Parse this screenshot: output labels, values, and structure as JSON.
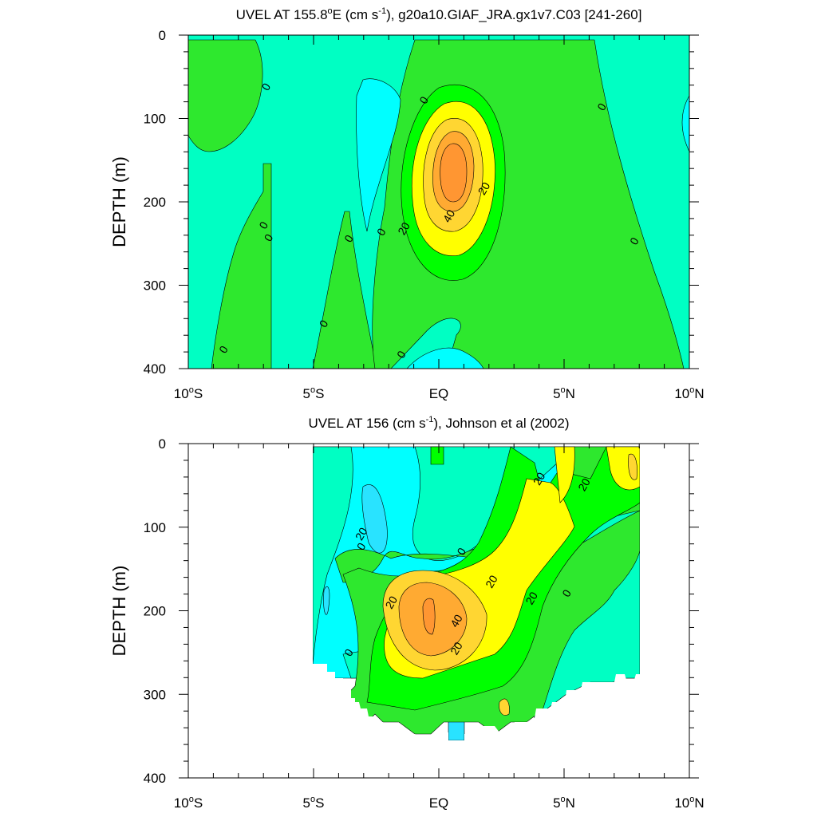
{
  "colors": {
    "background": "#ffffff",
    "contour_line": "#000000",
    "fill_levels": [
      {
        "level": "-40",
        "color": "#29E3FF"
      },
      {
        "level": "-20",
        "color": "#00FFFF"
      },
      {
        "level": "0",
        "color": "#00FFC3"
      },
      {
        "level": "20",
        "color": "#2EE82E"
      },
      {
        "level": "40",
        "color": "#00FF00"
      },
      {
        "level": "60",
        "color": "#FFFF00"
      },
      {
        "level": "80",
        "color": "#FFD632"
      },
      {
        "level": "100",
        "color": "#FFAA32"
      },
      {
        "level": "120",
        "color": "#FF9632"
      }
    ]
  },
  "chart_data": [
    {
      "type": "contour",
      "title": "UVEL AT 155.8°E (cm s-1), g20a10.GIAF_JRA.gx1v7.C03 [241-260]",
      "title_parts": {
        "pre": "UVEL AT 155.8",
        "deg": "o",
        "mid": "E (cm s",
        "sup": "-1",
        "post": "), g20a10.GIAF_JRA.gx1v7.C03 [241-260]"
      },
      "xlabel": "",
      "ylabel": "DEPTH (m)",
      "xlim": [
        -10,
        10
      ],
      "ylim": [
        400,
        0
      ],
      "x_ticks": [
        {
          "value": -10,
          "num": "10",
          "hemi": "S"
        },
        {
          "value": -5,
          "num": "5",
          "hemi": "S"
        },
        {
          "value": 0,
          "num": "EQ",
          "hemi": ""
        },
        {
          "value": 5,
          "num": "5",
          "hemi": "N"
        },
        {
          "value": 10,
          "num": "10",
          "hemi": "N"
        }
      ],
      "y_ticks": [
        0,
        100,
        200,
        300,
        400
      ],
      "contour_labels": [
        {
          "x": -6.9,
          "y": 62,
          "text": "0"
        },
        {
          "x": -7.0,
          "y": 228,
          "text": "0"
        },
        {
          "x": -6.8,
          "y": 243,
          "text": "0"
        },
        {
          "x": -3.6,
          "y": 244,
          "text": "0"
        },
        {
          "x": -2.3,
          "y": 236,
          "text": "0"
        },
        {
          "x": -4.6,
          "y": 346,
          "text": "0"
        },
        {
          "x": -8.6,
          "y": 377,
          "text": "0"
        },
        {
          "x": -1.5,
          "y": 383,
          "text": "0"
        },
        {
          "x": -0.6,
          "y": 78,
          "text": "0"
        },
        {
          "x": 6.5,
          "y": 86,
          "text": "0"
        },
        {
          "x": 7.8,
          "y": 247,
          "text": "0"
        },
        {
          "x": 1.8,
          "y": 184,
          "text": "20"
        },
        {
          "x": -1.4,
          "y": 232,
          "text": "20"
        },
        {
          "x": 0.4,
          "y": 217,
          "text": "40"
        }
      ]
    },
    {
      "type": "contour",
      "title": "UVEL AT 156 (cm s-1), Johnson et al (2002)",
      "title_parts": {
        "pre": "UVEL AT 156",
        "deg": "",
        "mid": " (cm s",
        "sup": "-1",
        "post": "), Johnson et al (2002)"
      },
      "xlabel": "",
      "ylabel": "DEPTH (m)",
      "xlim": [
        -10,
        10
      ],
      "ylim": [
        400,
        0
      ],
      "x_ticks": [
        {
          "value": -10,
          "num": "10",
          "hemi": "S"
        },
        {
          "value": -5,
          "num": "5",
          "hemi": "S"
        },
        {
          "value": 0,
          "num": "EQ",
          "hemi": ""
        },
        {
          "value": 5,
          "num": "5",
          "hemi": "N"
        },
        {
          "value": 10,
          "num": "10",
          "hemi": "N"
        }
      ],
      "y_ticks": [
        0,
        100,
        200,
        300,
        400
      ],
      "contour_labels": [
        {
          "x": -3.1,
          "y": 108,
          "text": "20"
        },
        {
          "x": -3.1,
          "y": 123,
          "text": "0"
        },
        {
          "x": 0.9,
          "y": 129,
          "text": "0"
        },
        {
          "x": 4.0,
          "y": 42,
          "text": "20"
        },
        {
          "x": 5.8,
          "y": 49,
          "text": "20"
        },
        {
          "x": 2.1,
          "y": 165,
          "text": "20"
        },
        {
          "x": -1.9,
          "y": 190,
          "text": "20"
        },
        {
          "x": 0.7,
          "y": 212,
          "text": "40"
        },
        {
          "x": 3.7,
          "y": 185,
          "text": "20"
        },
        {
          "x": 5.1,
          "y": 179,
          "text": "0"
        },
        {
          "x": 0.7,
          "y": 245,
          "text": "20"
        },
        {
          "x": -3.6,
          "y": 250,
          "text": "0"
        }
      ]
    }
  ]
}
